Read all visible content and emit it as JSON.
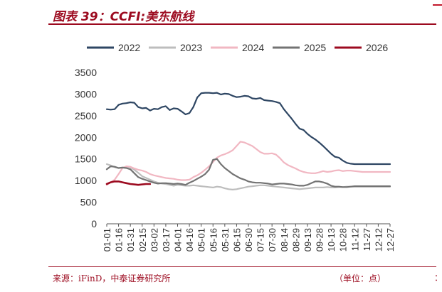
{
  "header": {
    "title": "图表 39：CCFI:美东航线"
  },
  "footer": {
    "source": "来源：iFinD，中泰证券研究所",
    "unit": "（单位：点）",
    "right_fragment": "："
  },
  "colors": {
    "brand": "#9c0a1f"
  },
  "chart_data": {
    "type": "line",
    "title": "CCFI:美东航线",
    "xlabel": "",
    "ylabel": "",
    "ylim": [
      0,
      3500
    ],
    "yticks": [
      0,
      500,
      1000,
      1500,
      2000,
      2500,
      3000,
      3500
    ],
    "grid": false,
    "legend_position": "top",
    "x_tick_labels": [
      "01-01",
      "01-16",
      "01-31",
      "02-15",
      "03-02",
      "03-17",
      "04-01",
      "04-16",
      "05-01",
      "05-16",
      "05-31",
      "06-15",
      "06-30",
      "07-15",
      "07-30",
      "08-14",
      "08-29",
      "09-13",
      "09-28",
      "10-13",
      "10-28",
      "11-12",
      "11-27",
      "12-12",
      "12-27"
    ],
    "x_range": [
      0,
      360
    ],
    "series": [
      {
        "name": "2022",
        "color": "#2e4663",
        "x": [
          0,
          5,
          10,
          15,
          20,
          25,
          30,
          35,
          40,
          45,
          50,
          55,
          60,
          65,
          70,
          75,
          80,
          85,
          90,
          95,
          100,
          105,
          110,
          115,
          120,
          125,
          130,
          135,
          140,
          145,
          150,
          155,
          160,
          165,
          170,
          175,
          180,
          185,
          190,
          195,
          200,
          205,
          210,
          215,
          220,
          225,
          230,
          235,
          240,
          245,
          250,
          255,
          260,
          265,
          270,
          275,
          280,
          285,
          290,
          295,
          300,
          305,
          310,
          315,
          320,
          325,
          330,
          335,
          340,
          345,
          350,
          355,
          360
        ],
        "values": [
          2650,
          2640,
          2650,
          2750,
          2780,
          2790,
          2810,
          2800,
          2700,
          2670,
          2680,
          2620,
          2660,
          2650,
          2700,
          2720,
          2630,
          2670,
          2660,
          2600,
          2530,
          2560,
          2700,
          2920,
          3020,
          3030,
          3030,
          3020,
          3030,
          2990,
          3010,
          3000,
          2960,
          2930,
          2940,
          2960,
          2950,
          2900,
          2890,
          2910,
          2860,
          2850,
          2840,
          2820,
          2790,
          2650,
          2540,
          2430,
          2310,
          2200,
          2170,
          2080,
          2010,
          1950,
          1880,
          1800,
          1710,
          1620,
          1550,
          1530,
          1460,
          1410,
          1390,
          1380,
          1380,
          1380,
          1380,
          1380,
          1380,
          1380,
          1380,
          1380,
          1380
        ]
      },
      {
        "name": "2023",
        "color": "#bdbdbd",
        "x": [
          0,
          5,
          10,
          15,
          20,
          25,
          30,
          35,
          40,
          45,
          50,
          55,
          60,
          65,
          70,
          75,
          80,
          85,
          90,
          95,
          100,
          105,
          110,
          115,
          120,
          125,
          130,
          135,
          140,
          145,
          150,
          155,
          160,
          165,
          170,
          175,
          180,
          185,
          190,
          195,
          200,
          205,
          210,
          215,
          220,
          225,
          230,
          235,
          240,
          245,
          250,
          255,
          260,
          265,
          270,
          275,
          280,
          285,
          290,
          295,
          300,
          305,
          310,
          315,
          320,
          325,
          330,
          335,
          340,
          345,
          350,
          355,
          360
        ],
        "values": [
          1380,
          1350,
          1310,
          1290,
          1300,
          1320,
          1310,
          1250,
          1180,
          1100,
          1060,
          1020,
          980,
          950,
          930,
          920,
          900,
          880,
          900,
          890,
          880,
          880,
          890,
          880,
          870,
          860,
          850,
          840,
          860,
          850,
          820,
          800,
          790,
          800,
          820,
          840,
          860,
          870,
          880,
          890,
          890,
          880,
          870,
          860,
          850,
          840,
          830,
          820,
          810,
          800,
          810,
          820,
          830,
          840,
          840,
          840,
          850,
          840,
          840,
          850,
          850,
          860,
          860,
          860,
          860,
          860,
          860,
          860,
          860,
          860,
          860,
          860,
          860
        ]
      },
      {
        "name": "2024",
        "color": "#f1b7c2",
        "x": [
          0,
          5,
          10,
          15,
          20,
          25,
          30,
          35,
          40,
          45,
          50,
          55,
          60,
          65,
          70,
          75,
          80,
          85,
          90,
          95,
          100,
          105,
          110,
          115,
          120,
          125,
          130,
          135,
          140,
          145,
          150,
          155,
          160,
          165,
          170,
          175,
          180,
          185,
          190,
          195,
          200,
          205,
          210,
          215,
          220,
          225,
          230,
          235,
          240,
          245,
          250,
          255,
          260,
          265,
          270,
          275,
          280,
          285,
          290,
          295,
          300,
          305,
          310,
          315,
          320,
          325,
          330,
          335,
          340,
          345,
          350,
          355,
          360
        ],
        "values": [
          900,
          960,
          1020,
          1150,
          1290,
          1330,
          1320,
          1280,
          1250,
          1230,
          1200,
          1150,
          1120,
          1100,
          1080,
          1060,
          1050,
          1040,
          1020,
          1010,
          1010,
          1020,
          1080,
          1120,
          1180,
          1250,
          1330,
          1430,
          1530,
          1580,
          1610,
          1650,
          1700,
          1800,
          1900,
          1880,
          1840,
          1800,
          1730,
          1660,
          1620,
          1620,
          1630,
          1600,
          1520,
          1420,
          1360,
          1320,
          1280,
          1230,
          1200,
          1180,
          1170,
          1170,
          1190,
          1220,
          1200,
          1210,
          1230,
          1240,
          1220,
          1230,
          1230,
          1220,
          1210,
          1200,
          1200,
          1200,
          1200,
          1200,
          1200,
          1200,
          1200
        ]
      },
      {
        "name": "2025",
        "color": "#737373",
        "x": [
          0,
          5,
          10,
          15,
          20,
          25,
          30,
          35,
          40,
          45,
          50,
          55,
          60,
          65,
          70,
          75,
          80,
          85,
          90,
          95,
          100,
          105,
          110,
          115,
          120,
          125,
          130,
          135,
          140,
          145,
          150,
          155,
          160,
          165,
          170,
          175,
          180,
          185,
          190,
          195,
          200,
          205,
          210,
          215,
          220,
          225,
          230,
          235,
          240,
          245,
          250,
          255,
          260,
          265,
          270,
          275,
          280,
          285,
          290,
          295,
          300,
          305,
          310,
          315,
          320,
          325,
          330,
          335,
          340,
          345,
          350,
          355,
          360
        ],
        "values": [
          1260,
          1330,
          1320,
          1290,
          1300,
          1290,
          1260,
          1170,
          1080,
          1040,
          1010,
          980,
          950,
          930,
          940,
          940,
          930,
          920,
          930,
          920,
          900,
          950,
          990,
          1040,
          1090,
          1150,
          1250,
          1480,
          1500,
          1380,
          1290,
          1220,
          1150,
          1100,
          1050,
          1020,
          980,
          960,
          950,
          950,
          940,
          930,
          910,
          920,
          930,
          930,
          920,
          910,
          890,
          880,
          880,
          900,
          940,
          980,
          980,
          960,
          930,
          880,
          860,
          860,
          850,
          850,
          860,
          870,
          870,
          870,
          870,
          870,
          870,
          870,
          870,
          870,
          870
        ]
      },
      {
        "name": "2026",
        "color": "#9c0a1f",
        "x": [
          0,
          5,
          10,
          15,
          20,
          25,
          30,
          35,
          40,
          45,
          50,
          55
        ],
        "values": [
          920,
          960,
          980,
          980,
          960,
          940,
          920,
          910,
          900,
          910,
          920,
          920
        ]
      }
    ]
  }
}
